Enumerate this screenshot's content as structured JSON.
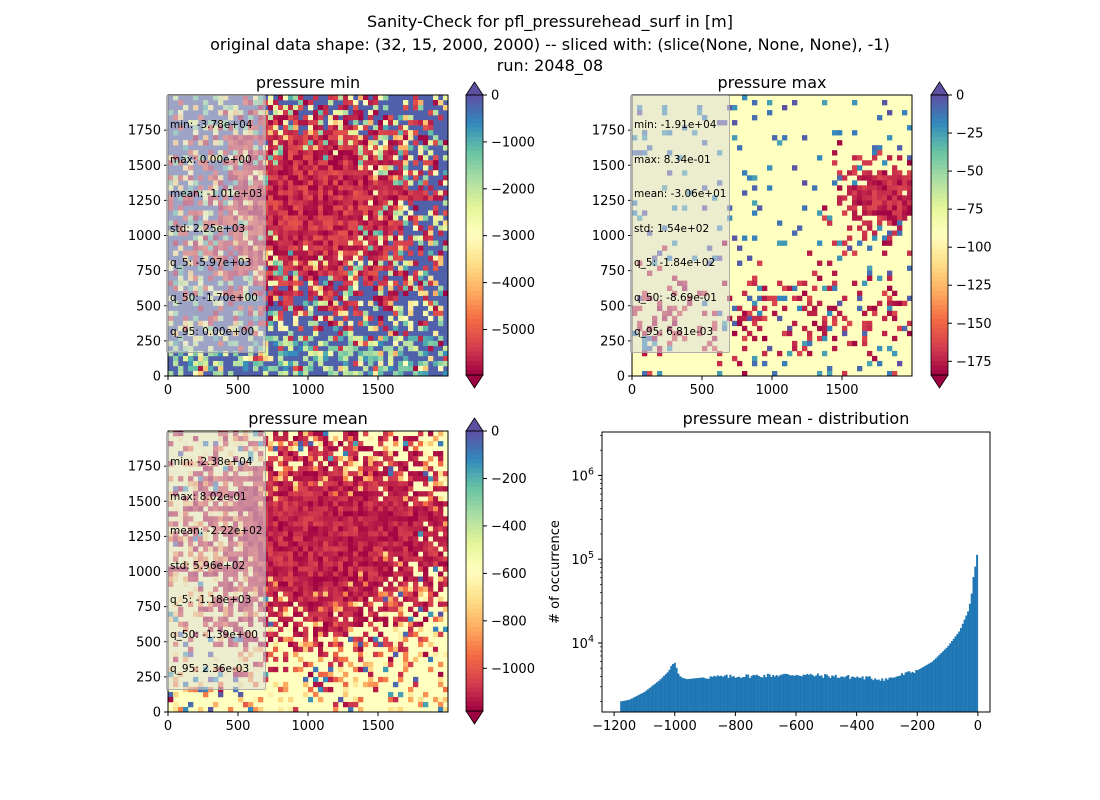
{
  "figure": {
    "title_lines": [
      "Sanity-Check for pfl_pressurehead_surf in [m]",
      "original data shape: (32, 15, 2000, 2000) -- sliced with: (slice(None, None, None), -1)",
      "run: 2048_08"
    ]
  },
  "panels": [
    {
      "id": "min",
      "title": "pressure min",
      "type": "heatmap",
      "xticks": [
        "0",
        "500",
        "1000",
        "1500"
      ],
      "yticks": [
        "0",
        "250",
        "500",
        "750",
        "1000",
        "1250",
        "1500",
        "1750"
      ],
      "xlim": [
        0,
        2000
      ],
      "ylim": [
        0,
        2000
      ],
      "cmap": "Spectral",
      "colorbar": {
        "vmin": -5970,
        "vmax": 0,
        "ticks": [
          0,
          -1000,
          -2000,
          -3000,
          -4000,
          -5000
        ],
        "tick_labels": [
          "0",
          "−1000",
          "−2000",
          "−3000",
          "−4000",
          "−5000"
        ],
        "extend": "both"
      },
      "stats": [
        "min: -3.78e+04",
        "max: 0.00e+00",
        "mean: -1.01e+03",
        "std: 2.25e+03",
        "q_5: -5.97e+03",
        "q_50: -1.70e+00",
        "q_95: 0.00e+00"
      ]
    },
    {
      "id": "max",
      "title": "pressure max",
      "type": "heatmap",
      "xticks": [
        "0",
        "500",
        "1000",
        "1500"
      ],
      "yticks": [
        "0",
        "250",
        "500",
        "750",
        "1000",
        "1250",
        "1500",
        "1750"
      ],
      "xlim": [
        0,
        2000
      ],
      "ylim": [
        0,
        2000
      ],
      "cmap": "Spectral",
      "colorbar": {
        "vmin": -184,
        "vmax": 0,
        "ticks": [
          0,
          -25,
          -50,
          -75,
          -100,
          -125,
          -150,
          -175
        ],
        "tick_labels": [
          "0",
          "−25",
          "−50",
          "−75",
          "−100",
          "−125",
          "−150",
          "−175"
        ],
        "extend": "both"
      },
      "stats": [
        "min: -1.91e+04",
        "max: 8.34e-01",
        "mean: -3.06e+01",
        "std: 1.54e+02",
        "q_5: -1.84e+02",
        "q_50: -8.69e-01",
        "q_95: 6.81e-03"
      ]
    },
    {
      "id": "mean",
      "title": "pressure mean",
      "type": "heatmap",
      "xticks": [
        "0",
        "500",
        "1000",
        "1500"
      ],
      "yticks": [
        "0",
        "250",
        "500",
        "750",
        "1000",
        "1250",
        "1500",
        "1750"
      ],
      "xlim": [
        0,
        2000
      ],
      "ylim": [
        0,
        2000
      ],
      "cmap": "Spectral",
      "colorbar": {
        "vmin": -1180,
        "vmax": 0,
        "ticks": [
          0,
          -200,
          -400,
          -600,
          -800,
          -1000
        ],
        "tick_labels": [
          "0",
          "−200",
          "−400",
          "−600",
          "−800",
          "−1000"
        ],
        "extend": "both"
      },
      "stats": [
        "min: -2.38e+04",
        "max: 8.02e-01",
        "mean: -2.22e+02",
        "std: 5.96e+02",
        "q_5: -1.18e+03",
        "q_50: -1.39e+00",
        "q_95: 2.36e-03"
      ]
    }
  ],
  "chart_data": {
    "type": "bar",
    "title": "pressure mean - distribution",
    "xlabel": "",
    "ylabel": "# of occurrence",
    "yscale": "log",
    "xlim": [
      -1240,
      40
    ],
    "ylim": [
      1500,
      3300000
    ],
    "xticks": [
      -1200,
      -1000,
      -800,
      -600,
      -400,
      -200,
      0
    ],
    "xtick_labels": [
      "−1200",
      "−1000",
      "−800",
      "−600",
      "−400",
      "−200",
      "0"
    ],
    "yticks": [
      10000,
      100000,
      1000000
    ],
    "ytick_labels": [
      {
        "base": "10",
        "exp": "4"
      },
      {
        "base": "10",
        "exp": "5"
      },
      {
        "base": "10",
        "exp": "6"
      }
    ],
    "color": "#1f77b4",
    "bin_range": [
      -1180,
      0
    ],
    "bin_count": 200,
    "profile_x": [
      -1180,
      -1150,
      -1100,
      -1050,
      -1020,
      -1010,
      -1000,
      -995,
      -990,
      -980,
      -960,
      -900,
      -600,
      -400,
      -300,
      -200,
      -150,
      -100,
      -60,
      -30,
      -20,
      -10,
      -7,
      -4,
      -2,
      -1
    ],
    "profile_y": [
      2000,
      2100,
      2600,
      3600,
      4600,
      5500,
      5800,
      5200,
      4400,
      3900,
      3700,
      3900,
      4200,
      3900,
      3700,
      4700,
      6000,
      9000,
      14000,
      25000,
      40000,
      90000,
      70000,
      60000,
      200000,
      2300000
    ]
  }
}
